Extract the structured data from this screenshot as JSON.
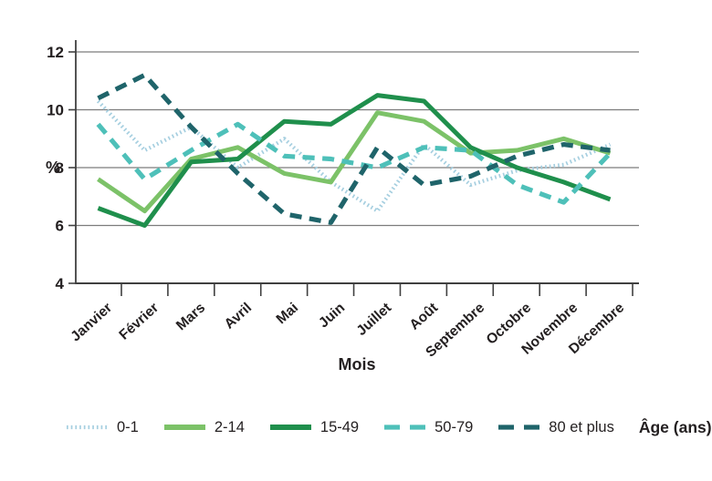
{
  "chart_data": {
    "type": "line",
    "title": "",
    "xlabel": "Mois",
    "ylabel": "%",
    "ylim": [
      4,
      12
    ],
    "yticks": [
      4,
      6,
      8,
      10,
      12
    ],
    "grid": true,
    "legend_position": "bottom",
    "legend_title": "Âge (ans)",
    "categories": [
      "Janvier",
      "Février",
      "Mars",
      "Avril",
      "Mai",
      "Juin",
      "Juillet",
      "Août",
      "Septembre",
      "Octobre",
      "Novembre",
      "Décembre"
    ],
    "series": [
      {
        "name": "0-1",
        "color": "#a6cfe0",
        "style": "dotted",
        "values": [
          10.3,
          8.6,
          9.4,
          8.0,
          9.0,
          7.5,
          6.5,
          8.8,
          7.4,
          7.9,
          8.1,
          8.8
        ]
      },
      {
        "name": "2-14",
        "color": "#7cc268",
        "style": "solid",
        "values": [
          7.6,
          6.5,
          8.3,
          8.7,
          7.8,
          7.5,
          9.9,
          9.6,
          8.5,
          8.6,
          9.0,
          8.5
        ]
      },
      {
        "name": "15-49",
        "color": "#1f8f4c",
        "style": "solid",
        "values": [
          6.6,
          6.0,
          8.2,
          8.3,
          9.6,
          9.5,
          10.5,
          10.3,
          8.7,
          8.0,
          7.5,
          6.9
        ]
      },
      {
        "name": "50-79",
        "color": "#4ec0b9",
        "style": "dashed",
        "values": [
          9.5,
          7.6,
          8.6,
          9.5,
          8.4,
          8.3,
          8.0,
          8.7,
          8.6,
          7.4,
          6.8,
          8.5
        ]
      },
      {
        "name": "80 et plus",
        "color": "#1f646a",
        "style": "dashed",
        "values": [
          10.4,
          11.2,
          9.4,
          7.8,
          6.4,
          6.1,
          8.7,
          7.4,
          7.7,
          8.4,
          8.8,
          8.6
        ]
      }
    ],
    "colors": {
      "gridline": "#7c7c7c",
      "axis": "#404040",
      "text": "#231f20",
      "background": "#ffffff"
    }
  }
}
